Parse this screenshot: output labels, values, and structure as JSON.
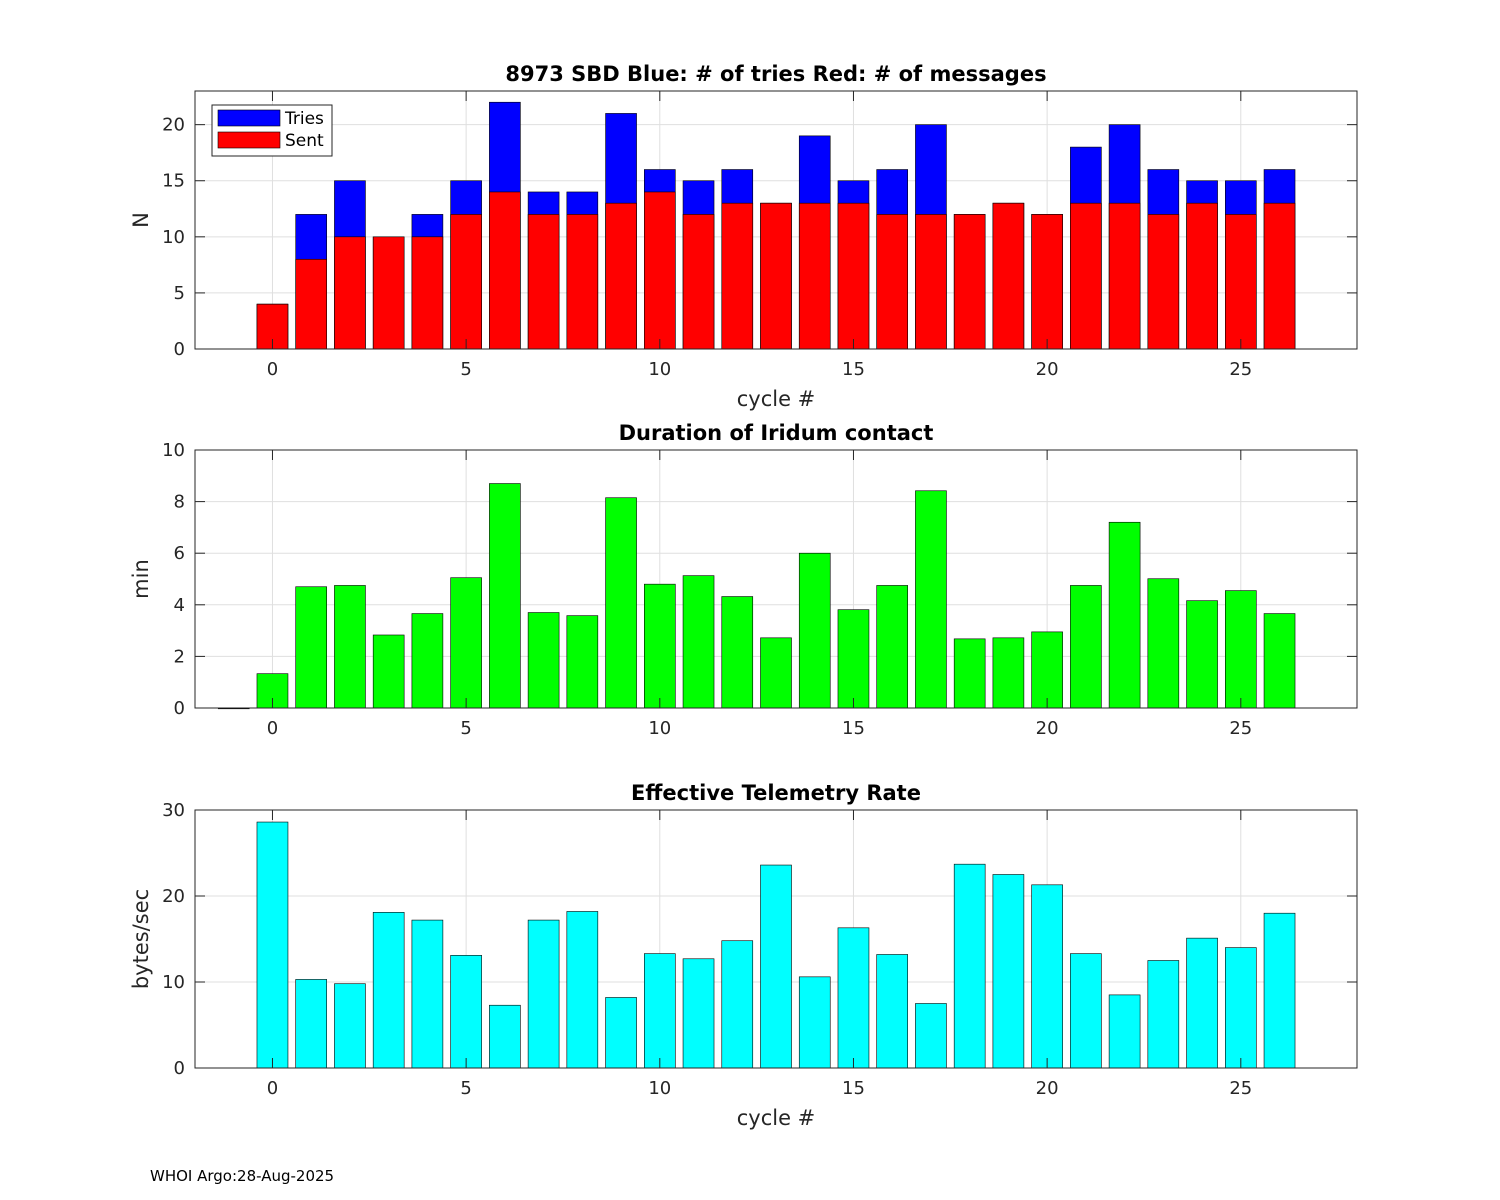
{
  "footer": "WHOI Argo:28-Aug-2025",
  "chart_data": [
    {
      "type": "bar",
      "title": "8973 SBD  Blue: # of tries   Red: # of messages",
      "xlabel": "cycle #",
      "ylabel": "N",
      "xlim": [
        -2,
        28
      ],
      "ylim": [
        0,
        23
      ],
      "xticks": [
        0,
        5,
        10,
        15,
        20,
        25
      ],
      "yticks": [
        0,
        5,
        10,
        15,
        20
      ],
      "grid": true,
      "legend": {
        "location": "top-left",
        "entries": [
          "Tries",
          "Sent"
        ]
      },
      "x": [
        0,
        1,
        2,
        3,
        4,
        5,
        6,
        7,
        8,
        9,
        10,
        11,
        12,
        13,
        14,
        15,
        16,
        17,
        18,
        19,
        20,
        21,
        22,
        23,
        24,
        25,
        26
      ],
      "series": [
        {
          "name": "Tries",
          "color": "#0000ff",
          "values": [
            4,
            12,
            15,
            10,
            12,
            15,
            22,
            14,
            14,
            21,
            16,
            15,
            16,
            13,
            19,
            15,
            16,
            20,
            12,
            13,
            12,
            18,
            20,
            16,
            15,
            15,
            16
          ]
        },
        {
          "name": "Sent",
          "color": "#ff0000",
          "values": [
            4,
            8,
            10,
            10,
            10,
            12,
            14,
            12,
            12,
            13,
            14,
            12,
            13,
            13,
            13,
            13,
            12,
            12,
            12,
            13,
            12,
            13,
            13,
            12,
            13,
            12,
            13
          ]
        }
      ]
    },
    {
      "type": "bar",
      "title": "Duration of Iridum contact",
      "xlabel": "",
      "ylabel": "min",
      "xlim": [
        -2,
        28
      ],
      "ylim": [
        0,
        10
      ],
      "xticks": [
        0,
        5,
        10,
        15,
        20,
        25
      ],
      "yticks": [
        0,
        2,
        4,
        6,
        8,
        10
      ],
      "grid": true,
      "x": [
        -1,
        0,
        1,
        2,
        3,
        4,
        5,
        6,
        7,
        8,
        9,
        10,
        11,
        12,
        13,
        14,
        15,
        16,
        17,
        18,
        19,
        20,
        21,
        22,
        23,
        24,
        25,
        26
      ],
      "series": [
        {
          "name": "Duration",
          "color": "#00ff00",
          "values": [
            0,
            1.33,
            4.7,
            4.75,
            2.83,
            3.66,
            5.05,
            8.7,
            3.7,
            3.58,
            8.15,
            4.8,
            5.13,
            4.32,
            2.72,
            6.0,
            3.81,
            4.75,
            8.42,
            2.68,
            2.72,
            2.95,
            4.75,
            7.2,
            5.01,
            4.16,
            4.55,
            3.66
          ]
        }
      ]
    },
    {
      "type": "bar",
      "title": "Effective Telemetry Rate",
      "xlabel": "cycle #",
      "ylabel": "bytes/sec",
      "xlim": [
        -2,
        28
      ],
      "ylim": [
        0,
        30
      ],
      "xticks": [
        0,
        5,
        10,
        15,
        20,
        25
      ],
      "yticks": [
        0,
        10,
        20,
        30
      ],
      "grid": true,
      "x": [
        0,
        1,
        2,
        3,
        4,
        5,
        6,
        7,
        8,
        9,
        10,
        11,
        12,
        13,
        14,
        15,
        16,
        17,
        18,
        19,
        20,
        21,
        22,
        23,
        24,
        25,
        26
      ],
      "series": [
        {
          "name": "Rate",
          "color": "#00ffff",
          "values": [
            28.6,
            10.3,
            9.8,
            18.1,
            17.2,
            13.1,
            7.3,
            17.2,
            18.2,
            8.2,
            13.3,
            12.7,
            14.8,
            23.6,
            10.6,
            16.3,
            13.2,
            7.5,
            23.7,
            22.5,
            21.3,
            13.3,
            8.5,
            12.5,
            15.1,
            14.0,
            18.0
          ]
        }
      ]
    }
  ]
}
